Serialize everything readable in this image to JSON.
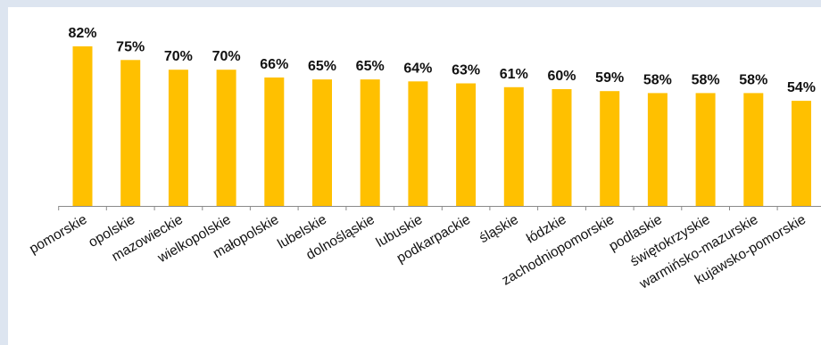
{
  "chart_data": {
    "type": "bar",
    "title": "",
    "xlabel": "",
    "ylabel": "",
    "ylim": [
      0,
      90
    ],
    "grid": false,
    "categories": [
      "pomorskie",
      "opolskie",
      "mazowieckie",
      "wielkopolskie",
      "małopolskie",
      "lubelskie",
      "dolnośląskie",
      "lubuskie",
      "podkarpackie",
      "śląskie",
      "łódzkie",
      "zachodniopomorskie",
      "podlaskie",
      "świętokrzyskie",
      "warmińsko-mazurskie",
      "kujawsko-pomorskie"
    ],
    "values": [
      82,
      75,
      70,
      70,
      66,
      65,
      65,
      64,
      63,
      61,
      60,
      59,
      58,
      58,
      58,
      54
    ],
    "value_labels": [
      "82%",
      "75%",
      "70%",
      "70%",
      "66%",
      "65%",
      "65%",
      "64%",
      "63%",
      "61%",
      "60%",
      "59%",
      "58%",
      "58%",
      "58%",
      "54%"
    ],
    "bar_color": "#ffc000"
  }
}
